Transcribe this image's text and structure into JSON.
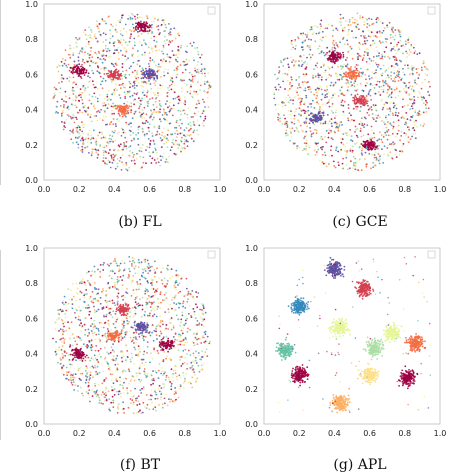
{
  "chart_data": [
    {
      "type": "scatter",
      "caption": "(b) FL",
      "pattern": "mixed",
      "xlim": [
        0.0,
        1.0
      ],
      "ylim": [
        0.0,
        1.0
      ],
      "xticks": [
        "0.0",
        "0.2",
        "0.4",
        "0.6",
        "0.8",
        "1.0"
      ],
      "yticks": [
        "0.0",
        "0.2",
        "0.4",
        "0.6",
        "0.8",
        "1.0"
      ],
      "center": [
        0.5,
        0.5
      ],
      "radius": 0.45,
      "series_count": 10,
      "dense_spots": [
        {
          "class": 0,
          "x": 0.56,
          "y": 0.87
        },
        {
          "class": 0,
          "x": 0.2,
          "y": 0.62
        },
        {
          "class": 1,
          "x": 0.4,
          "y": 0.6
        },
        {
          "class": 2,
          "x": 0.45,
          "y": 0.4
        },
        {
          "class": 9,
          "x": 0.6,
          "y": 0.6
        }
      ],
      "grid": false,
      "legend": "top-right"
    },
    {
      "type": "scatter",
      "caption": "(c) GCE",
      "pattern": "mixed",
      "xlim": [
        0.0,
        1.0
      ],
      "ylim": [
        0.0,
        1.0
      ],
      "xticks": [
        "0.0",
        "0.2",
        "0.4",
        "0.6",
        "0.8",
        "1.0"
      ],
      "yticks": [
        "0.0",
        "0.2",
        "0.4",
        "0.6",
        "0.8",
        "1.0"
      ],
      "center": [
        0.5,
        0.5
      ],
      "radius": 0.45,
      "series_count": 10,
      "dense_spots": [
        {
          "class": 0,
          "x": 0.6,
          "y": 0.2
        },
        {
          "class": 0,
          "x": 0.4,
          "y": 0.7
        },
        {
          "class": 1,
          "x": 0.55,
          "y": 0.45
        },
        {
          "class": 2,
          "x": 0.5,
          "y": 0.6
        },
        {
          "class": 9,
          "x": 0.3,
          "y": 0.35
        }
      ],
      "grid": false,
      "legend": "top-right"
    },
    {
      "type": "scatter",
      "caption": "(f) BT",
      "pattern": "mixed",
      "xlim": [
        0.0,
        1.0
      ],
      "ylim": [
        0.0,
        1.0
      ],
      "xticks": [
        "0.0",
        "0.2",
        "0.4",
        "0.6",
        "0.8",
        "1.0"
      ],
      "yticks": [
        "0.0",
        "0.2",
        "0.4",
        "0.6",
        "0.8",
        "1.0"
      ],
      "center": [
        0.5,
        0.5
      ],
      "radius": 0.45,
      "series_count": 10,
      "dense_spots": [
        {
          "class": 0,
          "x": 0.2,
          "y": 0.4
        },
        {
          "class": 0,
          "x": 0.7,
          "y": 0.45
        },
        {
          "class": 1,
          "x": 0.45,
          "y": 0.65
        },
        {
          "class": 2,
          "x": 0.4,
          "y": 0.5
        },
        {
          "class": 9,
          "x": 0.55,
          "y": 0.55
        }
      ],
      "grid": false,
      "legend": "top-right"
    },
    {
      "type": "scatter",
      "caption": "(g) APL",
      "pattern": "clustered",
      "xlim": [
        0.0,
        1.0
      ],
      "ylim": [
        0.0,
        1.0
      ],
      "xticks": [
        "0.0",
        "0.2",
        "0.4",
        "0.6",
        "0.8",
        "1.0"
      ],
      "yticks": [
        "0.0",
        "0.2",
        "0.4",
        "0.6",
        "0.8",
        "1.0"
      ],
      "series_count": 10,
      "clusters": [
        {
          "class": 0,
          "x": 0.82,
          "y": 0.26
        },
        {
          "class": 1,
          "x": 0.57,
          "y": 0.77
        },
        {
          "class": 2,
          "x": 0.86,
          "y": 0.46
        },
        {
          "class": 3,
          "x": 0.43,
          "y": 0.12
        },
        {
          "class": 4,
          "x": 0.6,
          "y": 0.28
        },
        {
          "class": 5,
          "x": 0.43,
          "y": 0.55
        },
        {
          "class": 6,
          "x": 0.63,
          "y": 0.43
        },
        {
          "class": 7,
          "x": 0.12,
          "y": 0.42
        },
        {
          "class": 8,
          "x": 0.2,
          "y": 0.67
        },
        {
          "class": 9,
          "x": 0.4,
          "y": 0.88
        },
        {
          "class": 0,
          "x": 0.2,
          "y": 0.28
        },
        {
          "class": 5,
          "x": 0.73,
          "y": 0.52
        }
      ],
      "grid": false,
      "legend": "top-right"
    }
  ],
  "palette": [
    "#9e0142",
    "#d53e4f",
    "#f46d43",
    "#fdae61",
    "#fee08b",
    "#e6f598",
    "#abdda4",
    "#66c2a5",
    "#3288bd",
    "#5e4fa2"
  ]
}
